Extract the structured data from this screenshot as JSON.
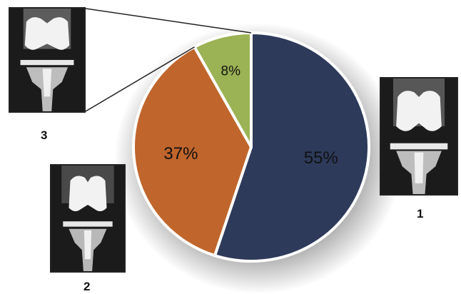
{
  "chart_data": {
    "type": "pie",
    "title": "",
    "slices": [
      {
        "label": "1",
        "value": 55,
        "display": "55%",
        "color": "#2d3a5a"
      },
      {
        "label": "2",
        "value": 37,
        "display": "37%",
        "color": "#c0652b"
      },
      {
        "label": "3",
        "value": 8,
        "display": "8%",
        "color": "#9bb255"
      }
    ]
  },
  "image_labels": {
    "one": "1",
    "two": "2",
    "three": "3"
  }
}
